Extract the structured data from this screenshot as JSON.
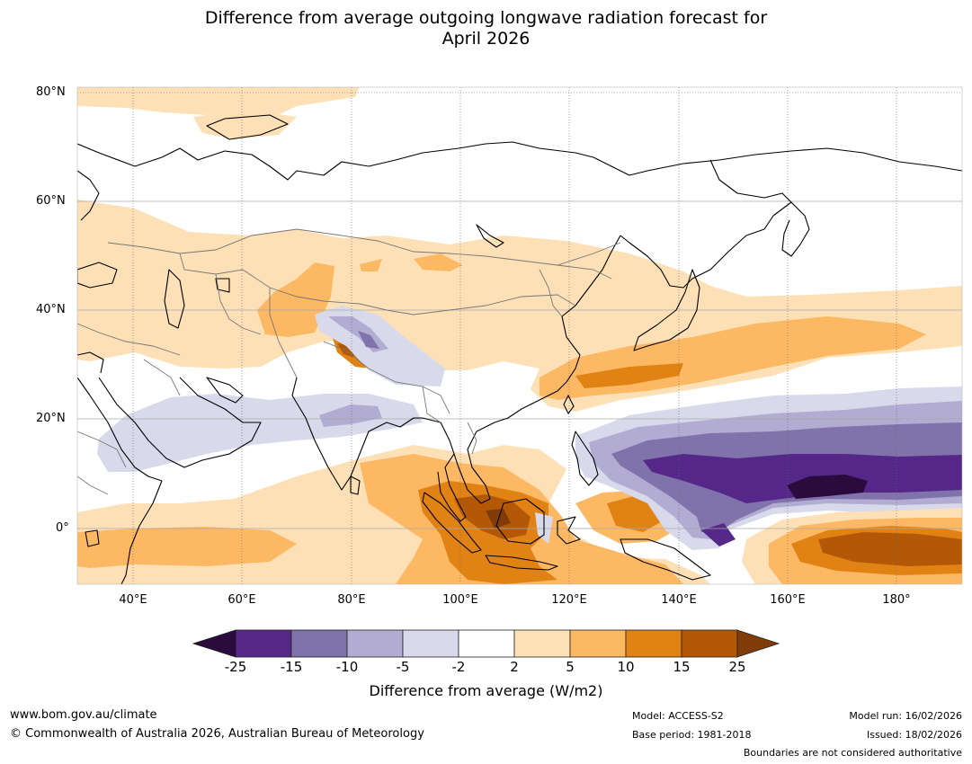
{
  "title": {
    "line1": "Difference from average outgoing longwave radiation forecast for",
    "line2": "April 2026"
  },
  "map": {
    "lat_labels": [
      "80°N",
      "60°N",
      "40°N",
      "20°N",
      "0°"
    ],
    "lon_labels": [
      "40°E",
      "60°E",
      "80°E",
      "100°E",
      "120°E",
      "140°E",
      "160°E",
      "180°"
    ],
    "extent": {
      "lon_min": 30,
      "lon_max": 192,
      "lat_min": -10,
      "lat_max": 81
    }
  },
  "colorbar": {
    "ticks": [
      "-25",
      "-15",
      "-10",
      "-5",
      "-2",
      "2",
      "5",
      "10",
      "15",
      "25"
    ],
    "colors": [
      "#2b0a3d",
      "#542788",
      "#8073ac",
      "#b2abd2",
      "#d8daeb",
      "#ffffff",
      "#fee0b6",
      "#fdb863",
      "#e08214",
      "#b35806",
      "#7f3b08"
    ],
    "label": "Difference from average (W/m2)"
  },
  "footer": {
    "url": "www.bom.gov.au/climate",
    "copyright": "© Commonwealth of Australia 2026, Australian Bureau of Meteorology",
    "model": "Model: ACCESS-S2",
    "base_period": "Base period: 1981-2018",
    "model_run": "Model run: 16/02/2026",
    "issued": "Issued: 18/02/2026",
    "disclaimer": "Boundaries are not considered authoritative"
  }
}
